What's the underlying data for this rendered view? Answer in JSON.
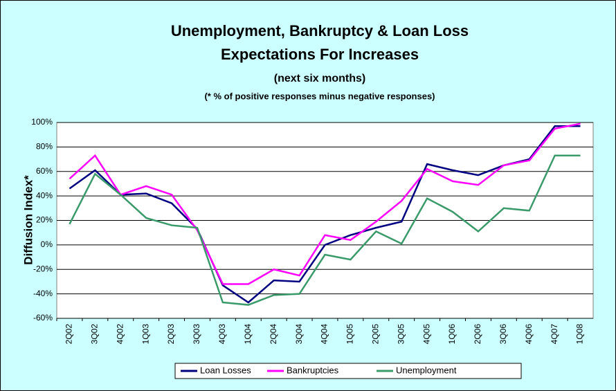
{
  "chart_data": {
    "type": "line",
    "title": [
      "Unemployment, Bankruptcy & Loan Loss",
      "Expectations For Increases"
    ],
    "subtitle": "(next six months)",
    "note": "(* % of positive responses minus negative responses)",
    "y_label": "Diffusion Index*",
    "categories": [
      "2Q02",
      "3Q02",
      "4Q02",
      "1Q03",
      "2Q03",
      "3Q03",
      "4Q03",
      "1Q04",
      "2Q04",
      "3Q04",
      "4Q04",
      "1Q05",
      "2Q05",
      "3Q05",
      "4Q05",
      "1Q06",
      "2Q06",
      "3Q06",
      "4Q06",
      "4Q07",
      "1Q08"
    ],
    "series": [
      {
        "name": "Loan Losses",
        "color": "#000080",
        "values": [
          46,
          61,
          41,
          42,
          34,
          13,
          -33,
          -47,
          -29,
          -30,
          0,
          8,
          14,
          19,
          66,
          61,
          57,
          65,
          70,
          97,
          97
        ]
      },
      {
        "name": "Bankruptcies",
        "color": "#ff00ff",
        "values": [
          54,
          73,
          41,
          48,
          41,
          12,
          -32,
          -32,
          -20,
          -25,
          8,
          4,
          19,
          36,
          62,
          52,
          49,
          65,
          69,
          95,
          99
        ]
      },
      {
        "name": "Unemployment",
        "color": "#3a9a6a",
        "values": [
          17,
          58,
          41,
          22,
          16,
          14,
          -47,
          -49,
          -41,
          -40,
          -8,
          -12,
          11,
          1,
          38,
          27,
          11,
          30,
          28,
          73,
          73
        ]
      }
    ],
    "ylim": [
      -60,
      100
    ],
    "yticks": [
      {
        "value": -60,
        "label": "-60%"
      },
      {
        "value": -40,
        "label": "-40%"
      },
      {
        "value": -20,
        "label": "-20%"
      },
      {
        "value": 0,
        "label": "0%"
      },
      {
        "value": 20,
        "label": "20%"
      },
      {
        "value": 40,
        "label": "40%"
      },
      {
        "value": 60,
        "label": "60%"
      },
      {
        "value": 80,
        "label": "80%"
      },
      {
        "value": 100,
        "label": "100%"
      }
    ],
    "grid": true,
    "legend": "bottom"
  }
}
